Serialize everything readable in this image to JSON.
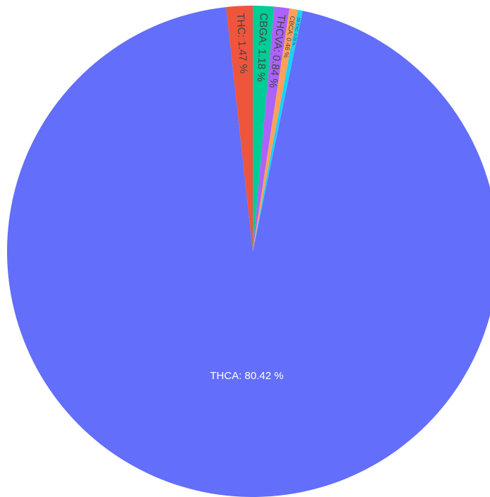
{
  "chart_data": {
    "type": "pie",
    "title": "",
    "slices": [
      {
        "label": "THC",
        "value": 1.47,
        "text": "THC: 1.47 %",
        "color": "#EF553B",
        "text_color": "#444444"
      },
      {
        "label": "THCA",
        "value": 80.42,
        "text": "THCA: 80.42 %",
        "color": "#636EFA",
        "text_color": "#ffffff"
      },
      {
        "label": "Δ9-THC",
        "value": 0.28,
        "text": "Δ9-THC: 0.28 %",
        "color": "#19D3F3",
        "text_color": "#444444"
      },
      {
        "label": "CBCA",
        "value": 0.46,
        "text": "CBCA: 0.46 %",
        "color": "#FFA15A",
        "text_color": "#444444"
      },
      {
        "label": "THCVA",
        "value": 0.84,
        "text": "THCVA: 0.84 %",
        "color": "#AB63FA",
        "text_color": "#444444"
      },
      {
        "label": "CBGA",
        "value": 1.18,
        "text": "CBGA: 1.18 %",
        "color": "#00CC96",
        "text_color": "#444444"
      }
    ]
  }
}
